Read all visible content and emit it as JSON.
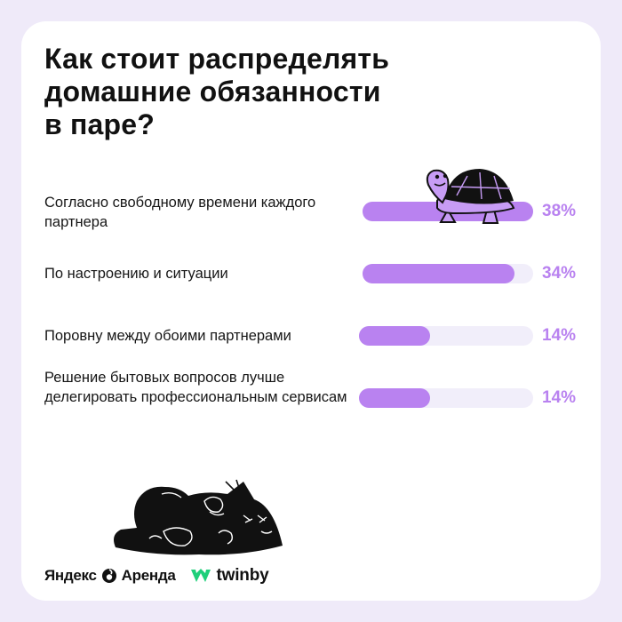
{
  "colors": {
    "background": "#efeaf9",
    "card": "#ffffff",
    "bar_fill": "#b982f0",
    "bar_track": "#f1eefa",
    "percent_text": "#b982f0",
    "twinby_green": "#1fcf7a"
  },
  "icons": [
    "turtle-illustration",
    "sleeping-cat-illustration",
    "yandex-arenda-logo-icon",
    "twinby-logo-icon"
  ],
  "chart_data": {
    "type": "bar",
    "orientation": "horizontal",
    "title": "Как стоит распределять\nдомашние обязанности\nв паре?",
    "categories": [
      "Согласно свободному времени каждого партнера",
      "По настроению и ситуации",
      "Поровну между обоими партнерами",
      "Решение бытовых вопросов лучше делегировать профессиональным сервисам"
    ],
    "values": [
      38,
      34,
      14,
      14
    ],
    "value_labels": [
      "38%",
      "34%",
      "14%",
      "14%"
    ],
    "xlim": [
      0,
      38
    ],
    "grid": false,
    "legend": "none"
  },
  "footer": {
    "yandex_logo_text": "Яндекс",
    "arenda_logo_text": "Аренда",
    "twinby_logo_text": "twinby"
  }
}
